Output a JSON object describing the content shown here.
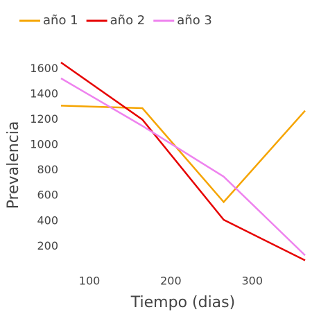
{
  "chart_data": {
    "type": "line",
    "x_label": "Tiempo (dias)",
    "y_label": "Prevalencia",
    "x": [
      65,
      165,
      265,
      365
    ],
    "series": [
      {
        "name": "año 1",
        "color": "#f5a400",
        "values": [
          1310,
          1290,
          550,
          1270
        ]
      },
      {
        "name": "año 2",
        "color": "#e60000",
        "values": [
          1650,
          1200,
          410,
          90
        ]
      },
      {
        "name": "año 3",
        "color": "#ee82ee",
        "values": [
          1525,
          1150,
          750,
          130
        ]
      }
    ],
    "xlim": [
      65,
      365
    ],
    "xticks": [
      100,
      200,
      300
    ],
    "ylim": [
      0,
      1700
    ],
    "yticks": [
      200,
      400,
      600,
      800,
      1000,
      1200,
      1400,
      1600
    ],
    "grid": false,
    "legend": "top-left"
  }
}
